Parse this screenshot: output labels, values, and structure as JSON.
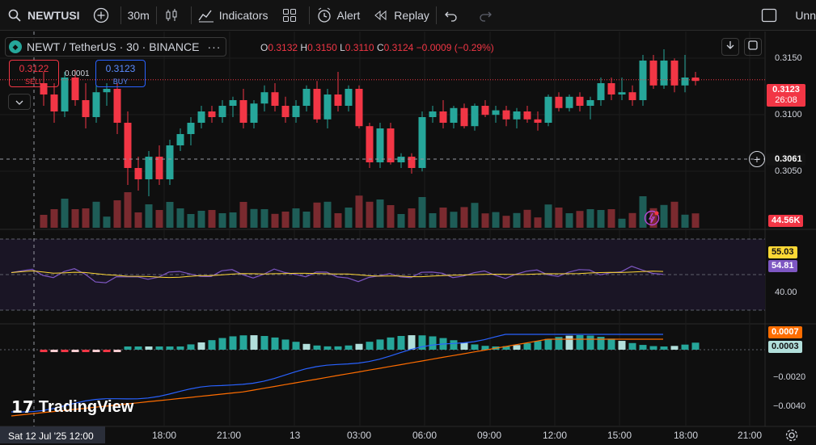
{
  "toolbar": {
    "symbol": "NEWTUSI",
    "interval": "30m",
    "indicators": "Indicators",
    "alert": "Alert",
    "replay": "Replay",
    "right_label": "Unn"
  },
  "legend": {
    "title": "NEWT / TetherUS · 30 · BINANCE",
    "o_label": "O",
    "o": "0.3132",
    "h_label": "H",
    "h": "0.3150",
    "l_label": "L",
    "l": "0.3110",
    "c_label": "C",
    "c": "0.3124",
    "change": "−0.0009 (−0.29%)"
  },
  "trade": {
    "sell_price": "0.3122",
    "sell_label": "SELL",
    "buy_price": "0.3123",
    "buy_label": "BUY",
    "spread": "0.0001"
  },
  "price_axis": {
    "ticks": [
      "0.3150",
      "0.3100",
      "0.3050"
    ],
    "current_price": "0.3123",
    "countdown": "26:08",
    "crosshair_price": "0.3061",
    "volume_badge": "44.56K"
  },
  "rsi_axis": {
    "tick": "40.00",
    "rsi_value": "54.81",
    "rsi_ma_value": "55.03"
  },
  "macd_axis": {
    "ticks": [
      "−0.0020",
      "−0.0040"
    ],
    "macd_value": "0.0007",
    "hist_value": "0.0003"
  },
  "time_axis": {
    "cursor_label": "Sat 12 Jul '25   12:00",
    "labels": [
      "18:00",
      "21:00",
      "13",
      "03:00",
      "06:00",
      "09:00",
      "12:00",
      "15:00",
      "18:00",
      "21:00"
    ]
  },
  "branding": {
    "logo_text": "TradingView"
  },
  "colors": {
    "up": "#26a69a",
    "down": "#f23645",
    "rsi": "#7e57c2",
    "rsi_ma": "#fdd835",
    "macd": "#2962ff",
    "signal": "#ff6d00"
  },
  "chart_data": {
    "type": "candlestick",
    "symbol": "NEWT / TetherUS",
    "interval": "30",
    "exchange": "BINANCE",
    "ylim": [
      0.3015,
      0.3165
    ],
    "candles": [
      [
        0.312,
        0.313,
        0.31,
        0.311
      ],
      [
        0.311,
        0.312,
        0.3085,
        0.3095
      ],
      [
        0.3095,
        0.313,
        0.309,
        0.3125
      ],
      [
        0.3125,
        0.3132,
        0.31,
        0.3105
      ],
      [
        0.3105,
        0.312,
        0.308,
        0.309
      ],
      [
        0.309,
        0.3118,
        0.3085,
        0.3112
      ],
      [
        0.3112,
        0.312,
        0.31,
        0.3115
      ],
      [
        0.3115,
        0.312,
        0.3075,
        0.3085
      ],
      [
        0.3085,
        0.3095,
        0.303,
        0.3045
      ],
      [
        0.3045,
        0.3055,
        0.3025,
        0.3035
      ],
      [
        0.3035,
        0.306,
        0.302,
        0.3055
      ],
      [
        0.3055,
        0.3065,
        0.303,
        0.3035
      ],
      [
        0.3035,
        0.307,
        0.303,
        0.3065
      ],
      [
        0.3065,
        0.308,
        0.306,
        0.3075
      ],
      [
        0.3075,
        0.309,
        0.3065,
        0.3085
      ],
      [
        0.3085,
        0.31,
        0.308,
        0.3095
      ],
      [
        0.3095,
        0.31,
        0.3085,
        0.309
      ],
      [
        0.309,
        0.3105,
        0.3085,
        0.31
      ],
      [
        0.31,
        0.3108,
        0.309,
        0.3105
      ],
      [
        0.3105,
        0.3115,
        0.308,
        0.3085
      ],
      [
        0.3085,
        0.3105,
        0.308,
        0.3102
      ],
      [
        0.3102,
        0.3118,
        0.3095,
        0.3112
      ],
      [
        0.3112,
        0.312,
        0.3095,
        0.31
      ],
      [
        0.31,
        0.3108,
        0.3085,
        0.309
      ],
      [
        0.309,
        0.3105,
        0.3085,
        0.31
      ],
      [
        0.31,
        0.3118,
        0.3095,
        0.3115
      ],
      [
        0.3115,
        0.3122,
        0.3085,
        0.3088
      ],
      [
        0.3088,
        0.3115,
        0.308,
        0.311
      ],
      [
        0.311,
        0.313,
        0.3095,
        0.31
      ],
      [
        0.31,
        0.3118,
        0.3095,
        0.3115
      ],
      [
        0.3115,
        0.3118,
        0.308,
        0.3082
      ],
      [
        0.3082,
        0.3085,
        0.3045,
        0.305
      ],
      [
        0.305,
        0.3085,
        0.3045,
        0.308
      ],
      [
        0.308,
        0.3085,
        0.3048,
        0.305
      ],
      [
        0.305,
        0.3058,
        0.3045,
        0.3055
      ],
      [
        0.3055,
        0.3058,
        0.304,
        0.3045
      ],
      [
        0.3045,
        0.3095,
        0.3042,
        0.309
      ],
      [
        0.309,
        0.31,
        0.3085,
        0.3095
      ],
      [
        0.3095,
        0.3105,
        0.308,
        0.3085
      ],
      [
        0.3085,
        0.31,
        0.308,
        0.3098
      ],
      [
        0.3098,
        0.3102,
        0.308,
        0.3082
      ],
      [
        0.3082,
        0.3102,
        0.3078,
        0.31
      ],
      [
        0.31,
        0.3105,
        0.309,
        0.3092
      ],
      [
        0.3092,
        0.31,
        0.3085,
        0.3096
      ],
      [
        0.3096,
        0.31,
        0.3082,
        0.3088
      ],
      [
        0.3088,
        0.3098,
        0.308,
        0.3095
      ],
      [
        0.3095,
        0.31,
        0.3085,
        0.3088
      ],
      [
        0.3088,
        0.3095,
        0.3078,
        0.3085
      ],
      [
        0.3085,
        0.311,
        0.3082,
        0.3108
      ],
      [
        0.3108,
        0.3112,
        0.3095,
        0.3098
      ],
      [
        0.3098,
        0.311,
        0.3095,
        0.3108
      ],
      [
        0.3108,
        0.3112,
        0.3095,
        0.31
      ],
      [
        0.31,
        0.3108,
        0.3088,
        0.3105
      ],
      [
        0.3105,
        0.3125,
        0.31,
        0.312
      ],
      [
        0.312,
        0.3125,
        0.3105,
        0.311
      ],
      [
        0.311,
        0.3125,
        0.3105,
        0.3112
      ],
      [
        0.3112,
        0.3118,
        0.31,
        0.3105
      ],
      [
        0.3105,
        0.3145,
        0.31,
        0.314
      ],
      [
        0.314,
        0.3145,
        0.3115,
        0.3118
      ],
      [
        0.3118,
        0.315,
        0.3115,
        0.314
      ],
      [
        0.314,
        0.3142,
        0.3112,
        0.3118
      ],
      [
        0.3118,
        0.3145,
        0.3112,
        0.3125
      ],
      [
        0.3125,
        0.313,
        0.3118,
        0.3122
      ]
    ],
    "volume_note": "volume bars colored by candle direction"
  }
}
